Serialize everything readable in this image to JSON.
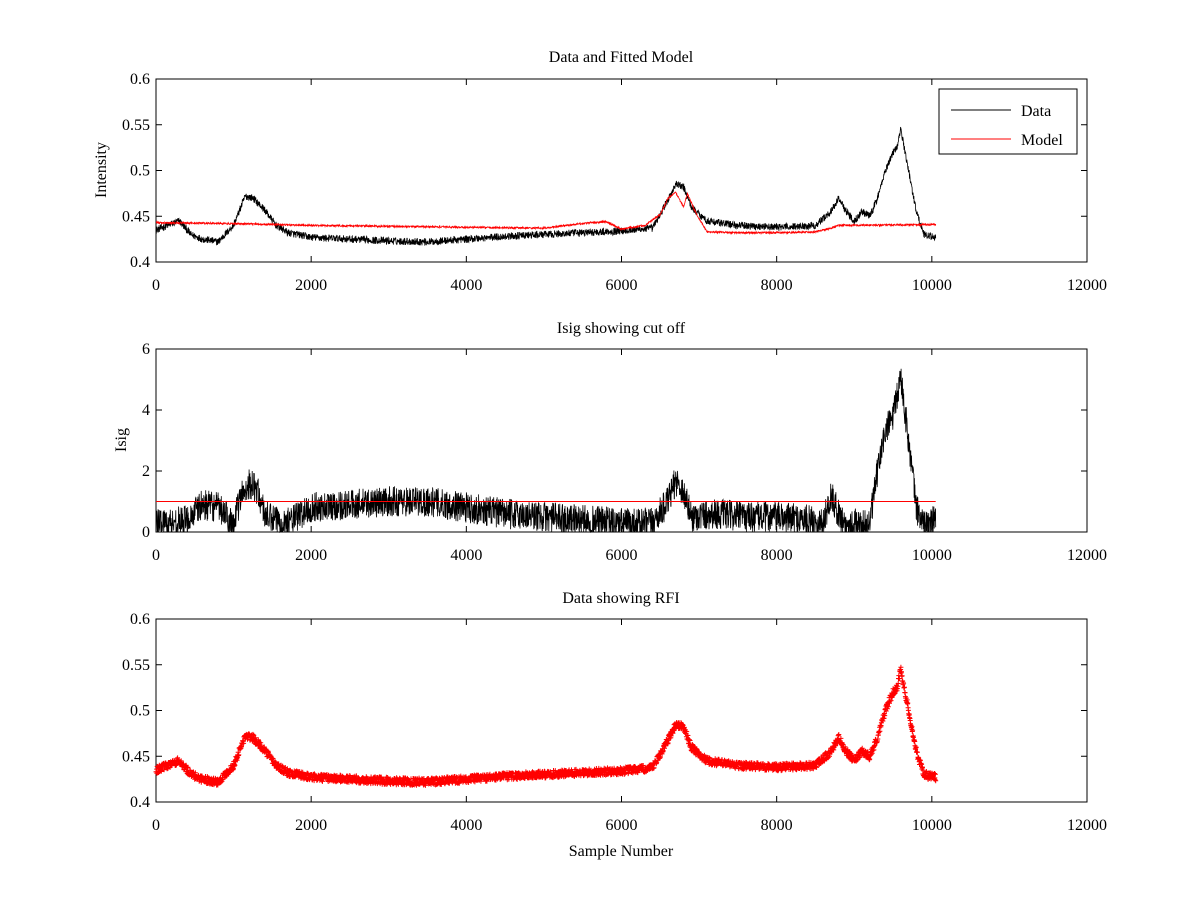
{
  "colors": {
    "data": "#000000",
    "model": "#ff0000",
    "rfi": "#ff0000",
    "cutoff": "#ff0000",
    "background": "#ffffff"
  },
  "chart_data": [
    {
      "type": "line",
      "title": "Data and Fitted Model",
      "xlabel": "",
      "ylabel": "Intensity",
      "xlim": [
        0,
        12000
      ],
      "ylim": [
        0.4,
        0.6
      ],
      "xticks": [
        0,
        2000,
        4000,
        6000,
        8000,
        10000,
        12000
      ],
      "yticks": [
        0.4,
        0.45,
        0.5,
        0.55,
        0.6
      ],
      "ytick_labels": [
        "0.4",
        "0.45",
        "0.5",
        "0.55",
        "0.6"
      ],
      "legend": {
        "placement": "top-right",
        "entries": [
          "Data",
          "Model"
        ]
      },
      "series": [
        {
          "name": "Data",
          "color": "#000000",
          "noise": 0.004,
          "x": [
            0,
            150,
            300,
            450,
            600,
            800,
            1000,
            1150,
            1250,
            1400,
            1550,
            1700,
            2000,
            2500,
            3000,
            3500,
            4000,
            4500,
            5000,
            5500,
            6000,
            6400,
            6600,
            6700,
            6800,
            6900,
            7100,
            7500,
            8000,
            8500,
            8700,
            8800,
            8900,
            9000,
            9100,
            9200,
            9300,
            9400,
            9500,
            9550,
            9600,
            9700,
            9800,
            9900,
            10050
          ],
          "y": [
            0.435,
            0.44,
            0.445,
            0.43,
            0.425,
            0.422,
            0.44,
            0.472,
            0.47,
            0.457,
            0.44,
            0.432,
            0.427,
            0.425,
            0.423,
            0.422,
            0.425,
            0.428,
            0.43,
            0.432,
            0.434,
            0.437,
            0.468,
            0.485,
            0.482,
            0.46,
            0.445,
            0.44,
            0.438,
            0.44,
            0.455,
            0.47,
            0.455,
            0.445,
            0.455,
            0.45,
            0.47,
            0.5,
            0.52,
            0.525,
            0.545,
            0.5,
            0.455,
            0.43,
            0.427
          ]
        },
        {
          "name": "Model",
          "color": "#ff0000",
          "noise": 0.001,
          "x": [
            0,
            1000,
            2000,
            3000,
            4000,
            5000,
            5300,
            5600,
            5800,
            6000,
            6300,
            6500,
            6600,
            6700,
            6800,
            6850,
            6950,
            7100,
            7500,
            8000,
            8500,
            8700,
            8800,
            10050
          ],
          "y": [
            0.443,
            0.442,
            0.44,
            0.439,
            0.438,
            0.437,
            0.44,
            0.443,
            0.444,
            0.436,
            0.44,
            0.452,
            0.47,
            0.476,
            0.46,
            0.475,
            0.455,
            0.433,
            0.432,
            0.432,
            0.433,
            0.437,
            0.44,
            0.441
          ]
        }
      ]
    },
    {
      "type": "line",
      "title": "Isig showing cut off",
      "xlabel": "",
      "ylabel": "Isig",
      "xlim": [
        0,
        12000
      ],
      "ylim": [
        0,
        6
      ],
      "xticks": [
        0,
        2000,
        4000,
        6000,
        8000,
        10000,
        12000
      ],
      "yticks": [
        0,
        2,
        4,
        6
      ],
      "ytick_labels": [
        "0",
        "2",
        "4",
        "6"
      ],
      "cutoff": {
        "value": 1,
        "x_range": [
          0,
          10050
        ],
        "color": "#ff0000"
      },
      "series": [
        {
          "color": "#000000",
          "noise": 0.5,
          "x": [
            0,
            200,
            400,
            600,
            800,
            1000,
            1100,
            1200,
            1300,
            1400,
            1500,
            1700,
            2000,
            2500,
            3000,
            3500,
            4000,
            4500,
            5000,
            5500,
            6000,
            6400,
            6600,
            6700,
            6800,
            6900,
            7200,
            7600,
            8000,
            8400,
            8600,
            8700,
            8800,
            8900,
            9000,
            9100,
            9200,
            9300,
            9400,
            9500,
            9550,
            9600,
            9700,
            9800,
            9900,
            10050
          ],
          "y": [
            0.3,
            0.3,
            0.4,
            0.9,
            0.8,
            0.3,
            1.2,
            1.6,
            1.4,
            0.6,
            0.4,
            0.3,
            0.8,
            0.9,
            1.0,
            1.0,
            0.8,
            0.6,
            0.5,
            0.4,
            0.3,
            0.3,
            1.0,
            1.7,
            1.3,
            0.5,
            0.6,
            0.5,
            0.5,
            0.4,
            0.3,
            1.2,
            0.6,
            0.2,
            0.3,
            0.2,
            0.3,
            2.0,
            3.3,
            3.8,
            4.4,
            5.1,
            3.0,
            0.8,
            0.2,
            0.4
          ]
        }
      ]
    },
    {
      "type": "scatter",
      "title": "Data showing RFI",
      "xlabel": "Sample Number",
      "ylabel": "",
      "xlim": [
        0,
        12000
      ],
      "ylim": [
        0.4,
        0.6
      ],
      "xticks": [
        0,
        2000,
        4000,
        6000,
        8000,
        10000,
        12000
      ],
      "yticks": [
        0.4,
        0.45,
        0.5,
        0.55,
        0.6
      ],
      "ytick_labels": [
        "0.4",
        "0.45",
        "0.5",
        "0.55",
        "0.6"
      ],
      "marker": "+",
      "series": [
        {
          "color": "#ff0000",
          "noise": 0.004,
          "x": [
            0,
            150,
            300,
            450,
            600,
            800,
            1000,
            1150,
            1250,
            1400,
            1550,
            1700,
            2000,
            2500,
            3000,
            3500,
            4000,
            4500,
            5000,
            5500,
            6000,
            6400,
            6600,
            6700,
            6800,
            6900,
            7100,
            7500,
            8000,
            8500,
            8700,
            8800,
            8900,
            9000,
            9100,
            9200,
            9300,
            9400,
            9500,
            9550,
            9600,
            9700,
            9800,
            9900,
            10050
          ],
          "y": [
            0.435,
            0.44,
            0.445,
            0.43,
            0.425,
            0.422,
            0.44,
            0.472,
            0.47,
            0.457,
            0.44,
            0.432,
            0.427,
            0.425,
            0.423,
            0.422,
            0.425,
            0.428,
            0.43,
            0.432,
            0.434,
            0.437,
            0.468,
            0.485,
            0.482,
            0.46,
            0.445,
            0.44,
            0.438,
            0.44,
            0.455,
            0.47,
            0.455,
            0.445,
            0.455,
            0.45,
            0.47,
            0.5,
            0.52,
            0.525,
            0.545,
            0.5,
            0.455,
            0.43,
            0.427
          ]
        }
      ]
    }
  ]
}
